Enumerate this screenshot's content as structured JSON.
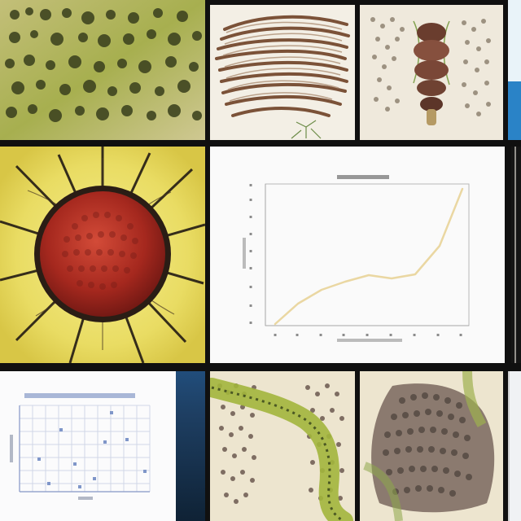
{
  "mosaic": {
    "colors": {
      "gutter": "#101010",
      "chart_background": "#fafafa",
      "line_color": "#ead7a2",
      "axis_color": "#9c9c9c",
      "small_chart_blue": "#95a9d2",
      "tissue_green": "#a8b43f",
      "tissue_brown": "#6c4c3b",
      "sun_yellow": "#f1e06a",
      "sun_red": "#9b2c22"
    }
  },
  "main_chart": {
    "visible_texts": {
      "title": "",
      "xlabel": "",
      "ylabel": ""
    }
  },
  "small_chart": {
    "visible_texts": {
      "title": "",
      "xlabel": "",
      "ylabel": ""
    }
  }
}
